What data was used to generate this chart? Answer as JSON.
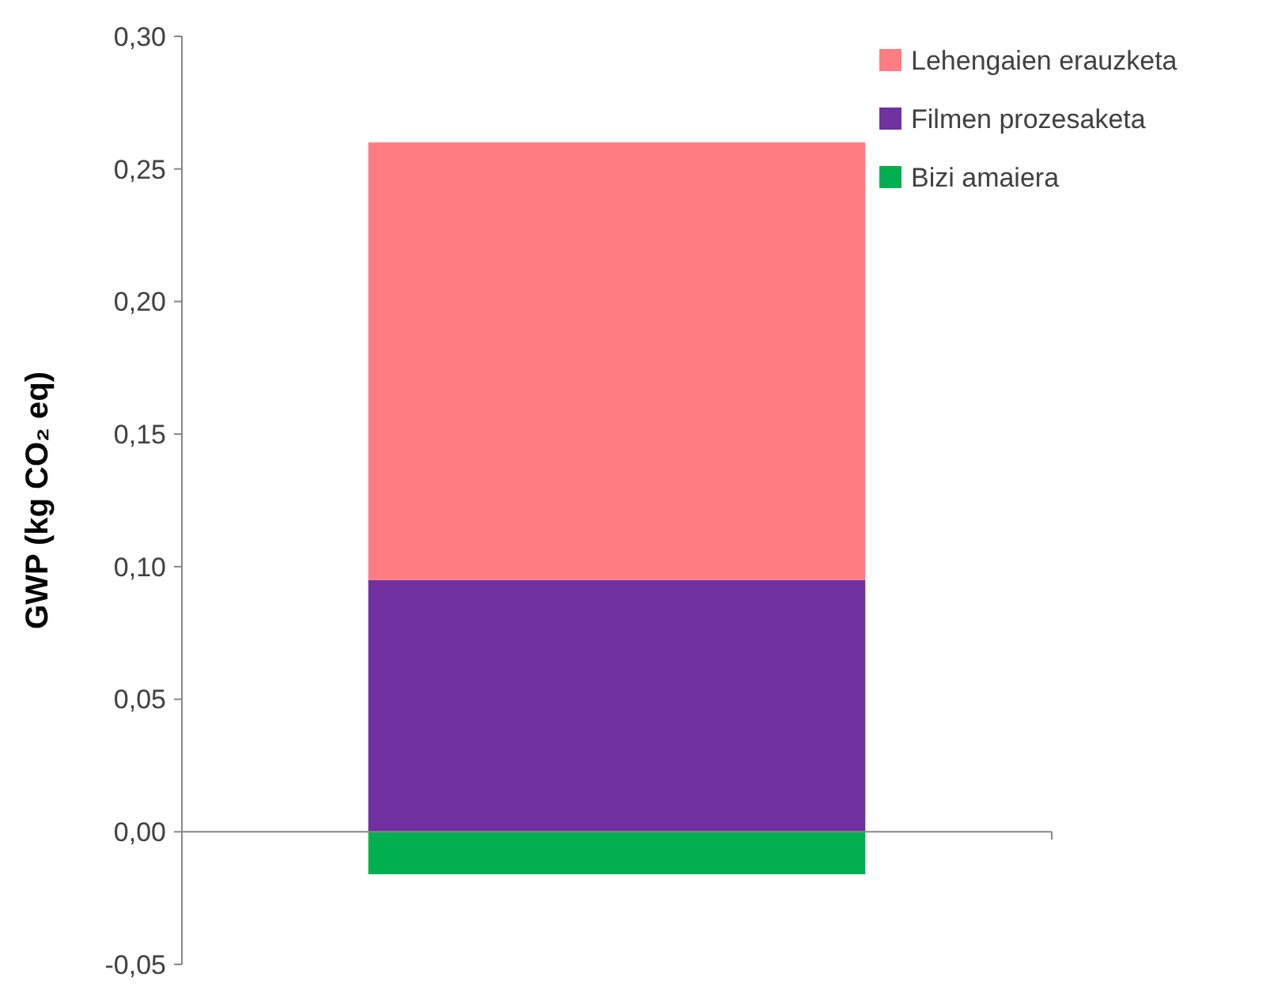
{
  "chart_data": {
    "type": "bar",
    "ylabel": "GWP (kg CO₂ eq)",
    "categories": [
      null
    ],
    "stacked": true,
    "series": [
      {
        "name": "Bizi amaiera",
        "color": "#00b050",
        "values": [
          -0.016
        ]
      },
      {
        "name": "Filmen prozesaketa",
        "color": "#7030a0",
        "values": [
          0.095
        ]
      },
      {
        "name": "Lehengaien erauzketa",
        "color": "#ff7c80",
        "values": [
          0.165
        ]
      }
    ],
    "ylim": [
      -0.05,
      0.3
    ],
    "yticks": [
      {
        "value": -0.05,
        "label": "-0,05"
      },
      {
        "value": 0,
        "label": "0,00"
      },
      {
        "value": 0.05,
        "label": "0,05"
      },
      {
        "value": 0.1,
        "label": "0,10"
      },
      {
        "value": 0.15,
        "label": "0,15"
      },
      {
        "value": 0.2,
        "label": "0,20"
      },
      {
        "value": 0.25,
        "label": "0,25"
      },
      {
        "value": 0.3,
        "label": "0,30"
      }
    ],
    "legend": "top right"
  }
}
